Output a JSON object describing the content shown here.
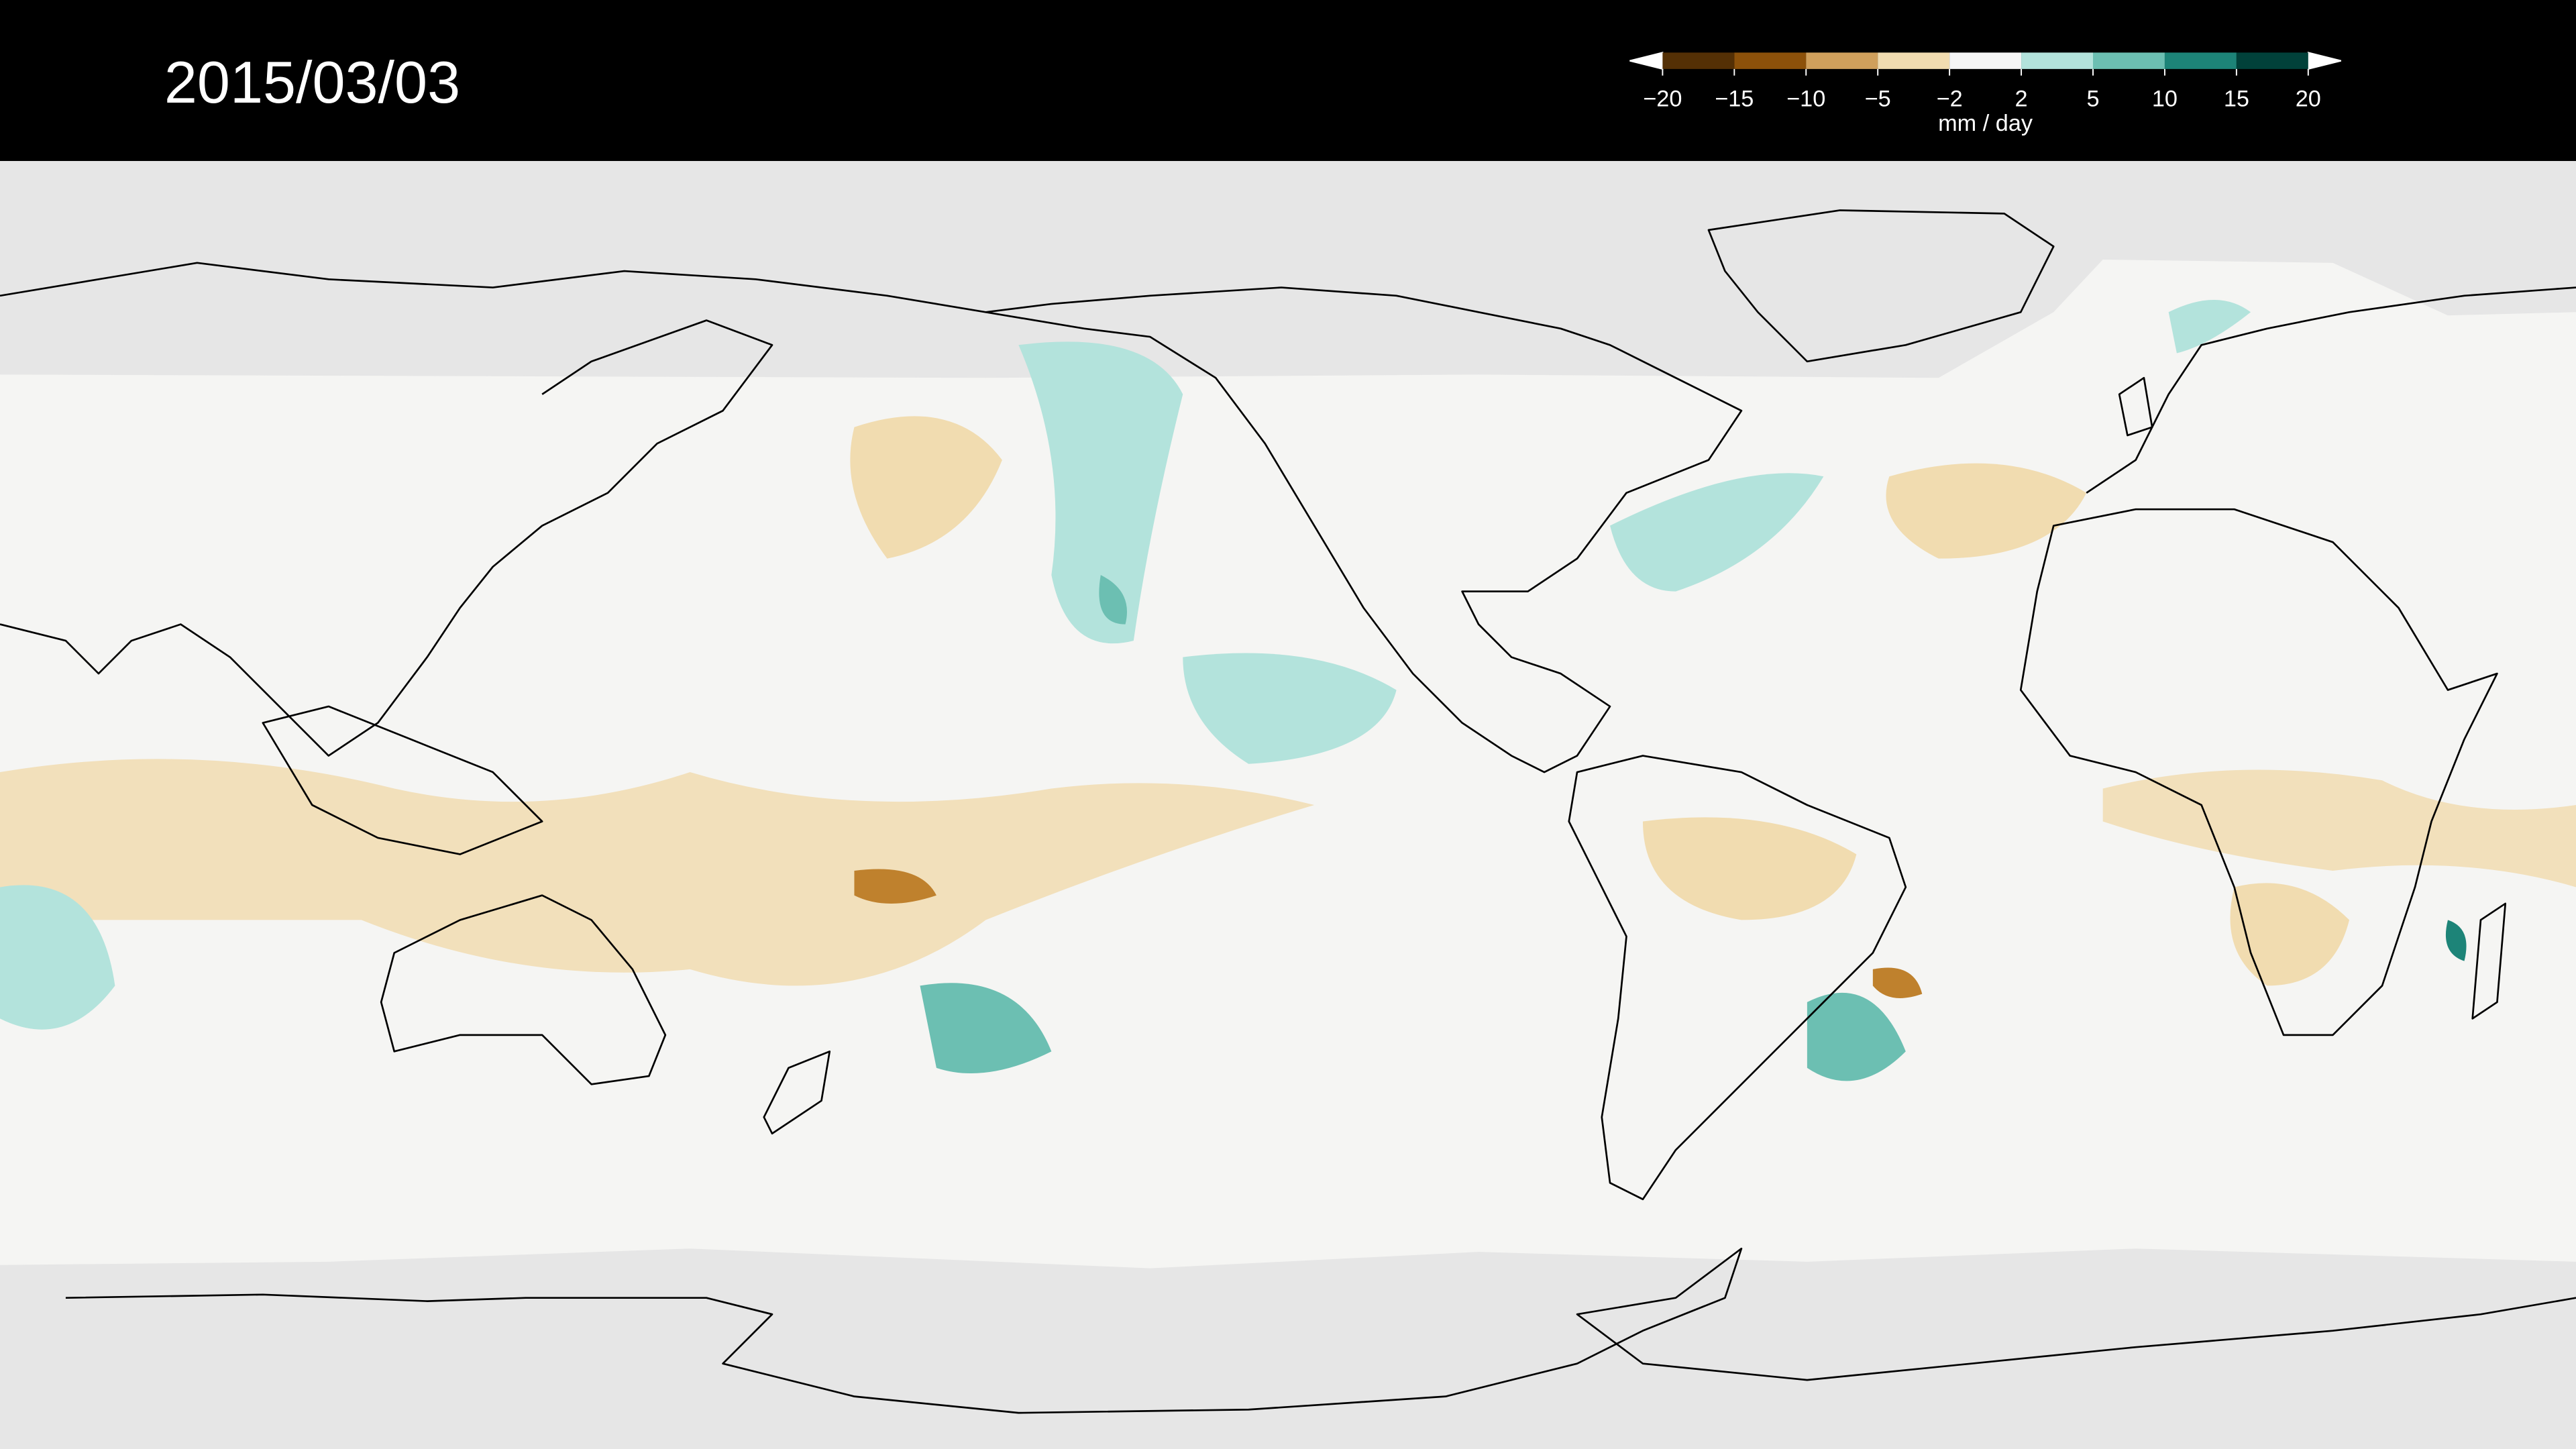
{
  "header": {
    "title": "2015/03/03"
  },
  "colorbar": {
    "ticks": [
      {
        "value": -20,
        "label": "−20"
      },
      {
        "value": -15,
        "label": "−15"
      },
      {
        "value": -10,
        "label": "−10"
      },
      {
        "value": -5,
        "label": "−5"
      },
      {
        "value": -2,
        "label": "−2"
      },
      2,
      5,
      10,
      15,
      20
    ],
    "colors": [
      "#543005",
      "#8c510a",
      "#d0a05c",
      "#f1dcb0",
      "#f5f5f5",
      "#b3e3dc",
      "#6cbfb2",
      "#1d8478",
      "#01413a"
    ],
    "under_color": "#ffffff",
    "over_color": "#ffffff",
    "label": "mm / day"
  }
}
